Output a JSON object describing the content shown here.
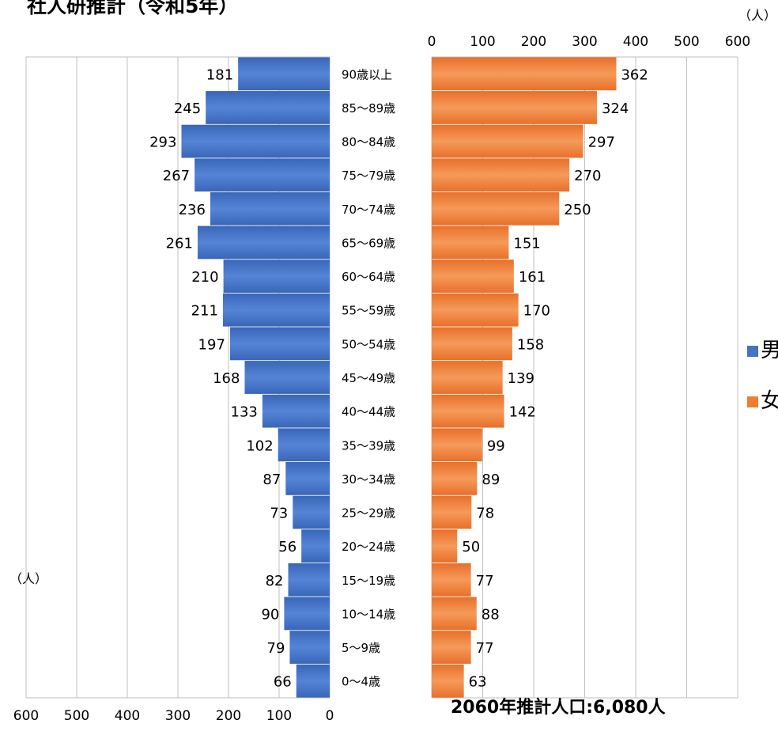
{
  "title": "社人研推計（令和5年）",
  "unit_label": "（人）",
  "total_label": "2060年推計人口:6,080人",
  "legend": [
    {
      "label": "男性",
      "color": "#4472C4"
    },
    {
      "label": "女性",
      "color": "#ED7D31"
    }
  ],
  "chart_data": {
    "type": "bar",
    "orientation": "horizontal",
    "categories": [
      "90歳以上",
      "85〜89歳",
      "80〜84歳",
      "75〜79歳",
      "70〜74歳",
      "65〜69歳",
      "60〜64歳",
      "55〜59歳",
      "50〜54歳",
      "45〜49歳",
      "40〜44歳",
      "35〜39歳",
      "30〜34歳",
      "25〜29歳",
      "20〜24歳",
      "15〜19歳",
      "10〜14歳",
      "5〜9歳",
      "0〜4歳"
    ],
    "series": [
      {
        "name": "男性",
        "side": "left",
        "color": "#4472C4",
        "values": [
          181,
          245,
          293,
          267,
          236,
          261,
          210,
          211,
          197,
          168,
          133,
          102,
          87,
          73,
          56,
          82,
          90,
          79,
          66
        ]
      },
      {
        "name": "女性",
        "side": "right",
        "color": "#ED7D31",
        "values": [
          362,
          324,
          297,
          270,
          250,
          151,
          161,
          170,
          158,
          139,
          142,
          99,
          89,
          78,
          50,
          77,
          88,
          77,
          63
        ]
      }
    ],
    "axis_ticks": [
      0,
      100,
      200,
      300,
      400,
      500,
      600
    ],
    "xlim": [
      0,
      600
    ],
    "ylabel": "（人）",
    "grid": true
  }
}
